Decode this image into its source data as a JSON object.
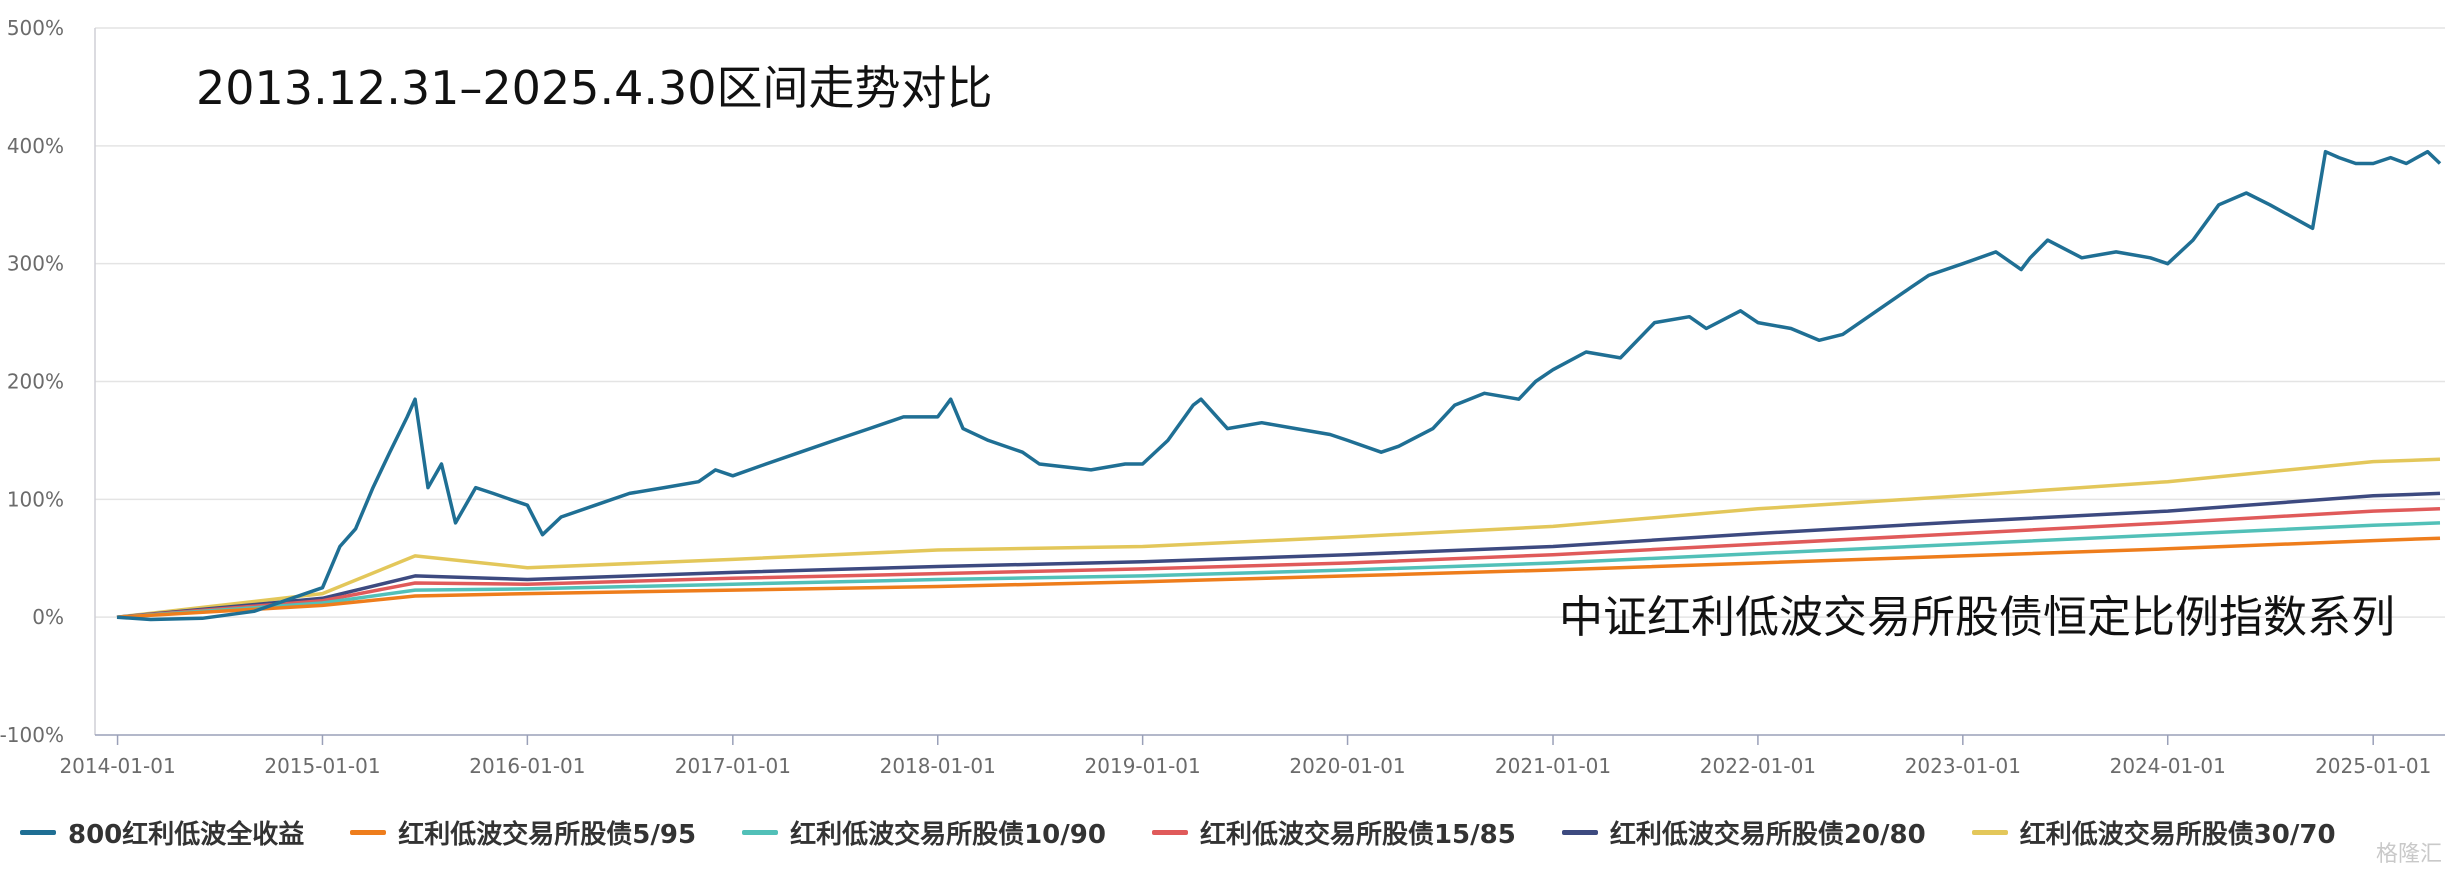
{
  "chart_data": {
    "type": "line",
    "title": "2013.12.31–2025.4.30区间走势对比",
    "subtitle": "中证红利低波交易所股债恒定比例指数系列",
    "ylim": [
      -100,
      500
    ],
    "yticks": [
      "500%",
      "400%",
      "300%",
      "200%",
      "100%",
      "0%",
      "-100%"
    ],
    "ytick_values": [
      500,
      400,
      300,
      200,
      100,
      0,
      -100
    ],
    "xticks": [
      "2014-01-01",
      "2015-01-01",
      "2016-01-01",
      "2017-01-01",
      "2018-01-01",
      "2019-01-01",
      "2020-01-01",
      "2021-01-01",
      "2022-01-01",
      "2023-01-01",
      "2024-01-01",
      "2025-01-01"
    ],
    "xlim": [
      "2013-12-31",
      "2025-04-30"
    ],
    "grid": "horizontal",
    "legend_position": "bottom",
    "series": [
      {
        "name": "800红利低波全收益",
        "color": "#1f6f94",
        "x": [
          "2013-12-31",
          "2014-03-01",
          "2014-06-01",
          "2014-09-01",
          "2014-11-01",
          "2015-01-01",
          "2015-02-01",
          "2015-03-01",
          "2015-04-01",
          "2015-05-01",
          "2015-06-01",
          "2015-06-15",
          "2015-07-08",
          "2015-08-01",
          "2015-08-26",
          "2015-10-01",
          "2015-11-01",
          "2015-12-01",
          "2016-01-01",
          "2016-01-28",
          "2016-03-01",
          "2016-05-01",
          "2016-07-01",
          "2016-09-01",
          "2016-11-01",
          "2016-12-01",
          "2017-01-01",
          "2017-03-01",
          "2017-05-01",
          "2017-07-01",
          "2017-09-01",
          "2017-11-01",
          "2018-01-01",
          "2018-01-24",
          "2018-02-15",
          "2018-04-01",
          "2018-06-01",
          "2018-07-01",
          "2018-10-01",
          "2018-12-01",
          "2019-01-01",
          "2019-02-15",
          "2019-04-01",
          "2019-04-15",
          "2019-06-01",
          "2019-08-01",
          "2019-10-01",
          "2019-12-01",
          "2020-01-01",
          "2020-03-01",
          "2020-04-01",
          "2020-06-01",
          "2020-07-10",
          "2020-09-01",
          "2020-11-01",
          "2020-12-01",
          "2021-01-01",
          "2021-03-01",
          "2021-05-01",
          "2021-07-01",
          "2021-09-01",
          "2021-10-01",
          "2021-12-01",
          "2022-01-01",
          "2022-03-01",
          "2022-04-20",
          "2022-06-01",
          "2022-08-01",
          "2022-10-01",
          "2022-11-01",
          "2023-01-01",
          "2023-03-01",
          "2023-04-15",
          "2023-05-01",
          "2023-06-01",
          "2023-08-01",
          "2023-10-01",
          "2023-12-01",
          "2024-01-01",
          "2024-02-15",
          "2024-04-01",
          "2024-05-20",
          "2024-07-01",
          "2024-09-15",
          "2024-10-08",
          "2024-11-01",
          "2024-12-01",
          "2025-01-01",
          "2025-02-01",
          "2025-03-01",
          "2025-04-08",
          "2025-04-30"
        ],
        "values": [
          0,
          -2,
          -1,
          5,
          15,
          25,
          60,
          75,
          110,
          140,
          170,
          185,
          110,
          130,
          80,
          110,
          105,
          100,
          95,
          70,
          85,
          95,
          105,
          110,
          115,
          125,
          120,
          130,
          140,
          150,
          160,
          170,
          170,
          185,
          160,
          150,
          140,
          130,
          125,
          130,
          130,
          150,
          180,
          185,
          160,
          165,
          160,
          155,
          150,
          140,
          145,
          160,
          180,
          190,
          185,
          200,
          210,
          225,
          220,
          250,
          255,
          245,
          260,
          250,
          245,
          235,
          240,
          260,
          280,
          290,
          300,
          310,
          295,
          305,
          320,
          305,
          310,
          305,
          300,
          320,
          350,
          360,
          350,
          330,
          395,
          390,
          385,
          385,
          390,
          385,
          395,
          385
        ]
      },
      {
        "name": "红利低波交易所股债5/95",
        "color": "#ee7d1c",
        "x": [
          "2013-12-31",
          "2015-01-01",
          "2015-06-15",
          "2016-01-01",
          "2017-01-01",
          "2018-01-01",
          "2019-01-01",
          "2020-01-01",
          "2021-01-01",
          "2022-01-01",
          "2023-01-01",
          "2024-01-01",
          "2025-01-01",
          "2025-04-30"
        ],
        "values": [
          0,
          10,
          18,
          20,
          23,
          26,
          30,
          35,
          40,
          46,
          52,
          58,
          65,
          67
        ]
      },
      {
        "name": "红利低波交易所股债10/90",
        "color": "#52c0b8",
        "x": [
          "2013-12-31",
          "2015-01-01",
          "2015-06-15",
          "2016-01-01",
          "2017-01-01",
          "2018-01-01",
          "2019-01-01",
          "2020-01-01",
          "2021-01-01",
          "2022-01-01",
          "2023-01-01",
          "2024-01-01",
          "2025-01-01",
          "2025-04-30"
        ],
        "values": [
          0,
          12,
          23,
          24,
          28,
          32,
          35,
          40,
          46,
          54,
          62,
          70,
          78,
          80
        ]
      },
      {
        "name": "红利低波交易所股债15/85",
        "color": "#e05a5a",
        "x": [
          "2013-12-31",
          "2015-01-01",
          "2015-06-15",
          "2016-01-01",
          "2017-01-01",
          "2018-01-01",
          "2019-01-01",
          "2020-01-01",
          "2021-01-01",
          "2022-01-01",
          "2023-01-01",
          "2024-01-01",
          "2025-01-01",
          "2025-04-30"
        ],
        "values": [
          0,
          14,
          29,
          28,
          33,
          37,
          41,
          46,
          53,
          62,
          71,
          80,
          90,
          92
        ]
      },
      {
        "name": "红利低波交易所股债20/80",
        "color": "#3d4a80",
        "x": [
          "2013-12-31",
          "2015-01-01",
          "2015-06-15",
          "2016-01-01",
          "2017-01-01",
          "2018-01-01",
          "2019-01-01",
          "2020-01-01",
          "2021-01-01",
          "2022-01-01",
          "2023-01-01",
          "2024-01-01",
          "2025-01-01",
          "2025-04-30"
        ],
        "values": [
          0,
          16,
          35,
          32,
          38,
          43,
          47,
          53,
          60,
          71,
          81,
          90,
          103,
          105
        ]
      },
      {
        "name": "红利低波交易所股债30/70",
        "color": "#e3c75a",
        "x": [
          "2013-12-31",
          "2015-01-01",
          "2015-06-15",
          "2016-01-01",
          "2017-01-01",
          "2018-01-01",
          "2019-01-01",
          "2020-01-01",
          "2021-01-01",
          "2022-01-01",
          "2023-01-01",
          "2024-01-01",
          "2025-01-01",
          "2025-04-30"
        ],
        "values": [
          0,
          20,
          52,
          42,
          49,
          57,
          60,
          68,
          77,
          92,
          103,
          115,
          132,
          134
        ]
      }
    ]
  },
  "watermark": "格隆汇"
}
